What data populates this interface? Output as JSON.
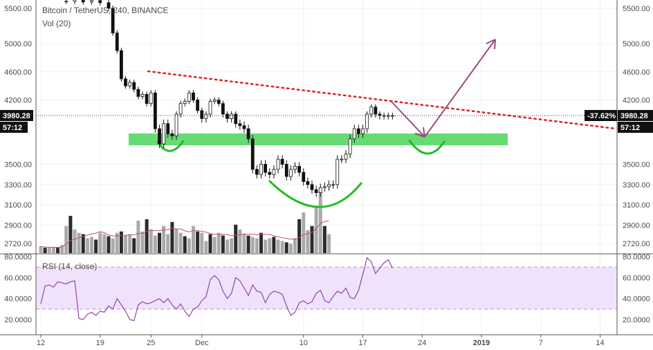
{
  "header": {
    "symbol_line": "Bitcoin / TetherUS, 240, BINANCE",
    "volume_label": "Vol (20)",
    "rsi_label": "RSI (14, close)"
  },
  "price_scale": {
    "ticks": [
      "5500.00",
      "5000.00",
      "4600.00",
      "4200.00",
      "3500.00",
      "3300.00",
      "3100.00",
      "2900.00",
      "2720.00"
    ],
    "tick_values": [
      5500,
      5000,
      4600,
      4200,
      3500,
      3300,
      3100,
      2900,
      2720
    ],
    "current_price": "3980.28",
    "countdown": "57:12",
    "percent_change": "-37.62%",
    "partial_label": "3"
  },
  "rsi_scale": {
    "ticks": [
      "80.0000",
      "60.0000",
      "40.0000",
      "20.0000"
    ],
    "tick_values": [
      80,
      60,
      40,
      20
    ],
    "upper_band": 70,
    "lower_band": 30
  },
  "time_axis": {
    "labels": [
      "12",
      "19",
      "25",
      "Dec",
      "10",
      "17",
      "24",
      "2019",
      "7",
      "14"
    ],
    "label_x_days": [
      0,
      7,
      13,
      19,
      31,
      38,
      45,
      52,
      59,
      66
    ],
    "year_label": "2019"
  },
  "chart_data": [
    {
      "type": "line",
      "name": "price",
      "title": "Bitcoin / TetherUS, 240, BINANCE",
      "x_unit": "days from Nov 12",
      "x": [
        3,
        4,
        5,
        6,
        7,
        8,
        8.5,
        9,
        9.5,
        10,
        10.5,
        11,
        11.5,
        12,
        12.5,
        13,
        13.5,
        14,
        14.5,
        15,
        15.5,
        16,
        16.5,
        17,
        17.5,
        18,
        18.5,
        19,
        19.5,
        20,
        20.5,
        21,
        21.5,
        22,
        22.5,
        23,
        23.5,
        24,
        24.5,
        25,
        25.5,
        26,
        26.5,
        27,
        27.5,
        28,
        28.5,
        29,
        29.5,
        30,
        30.5,
        31,
        31.5,
        32,
        32.5,
        33,
        33.5,
        34,
        34.5,
        35,
        35.5,
        36,
        36.5,
        37,
        37.5,
        38,
        38.5,
        39,
        39.5,
        40,
        40.5,
        41,
        41.5
      ],
      "values": [
        5600,
        5620,
        5590,
        5610,
        5580,
        5500,
        5150,
        4900,
        4500,
        4400,
        4450,
        4350,
        4250,
        4280,
        4150,
        4300,
        3850,
        3700,
        3900,
        3800,
        3780,
        4000,
        4150,
        4180,
        4300,
        4200,
        4050,
        3950,
        4000,
        4180,
        4200,
        4150,
        4000,
        3950,
        4000,
        3900,
        3880,
        3850,
        3750,
        3450,
        3400,
        3500,
        3420,
        3400,
        3450,
        3550,
        3500,
        3380,
        3450,
        3480,
        3420,
        3330,
        3300,
        3250,
        3220,
        3270,
        3280,
        3300,
        3300,
        3550,
        3550,
        3600,
        3750,
        3850,
        3800,
        3850,
        4000,
        4100,
        4000,
        3980,
        3980,
        3980,
        3980
      ],
      "ylim": [
        2650,
        5700
      ]
    },
    {
      "type": "bar",
      "name": "volume",
      "x_unit": "days from Nov 12",
      "x_start": 0,
      "x_step": 0.5,
      "values": [
        10,
        8,
        8,
        9,
        8,
        12,
        40,
        55,
        35,
        30,
        28,
        22,
        24,
        20,
        30,
        28,
        25,
        22,
        30,
        32,
        26,
        28,
        22,
        48,
        32,
        50,
        35,
        26,
        30,
        40,
        28,
        46,
        36,
        30,
        25,
        22,
        40,
        32,
        30,
        18,
        28,
        24,
        30,
        26,
        20,
        22,
        42,
        35,
        28,
        26,
        24,
        22,
        30,
        20,
        22,
        24,
        20,
        18,
        16,
        14,
        22,
        50,
        60,
        34,
        40,
        70,
        90,
        40,
        28
      ],
      "ylim": [
        0,
        100
      ]
    },
    {
      "type": "line",
      "name": "rsi",
      "x_unit": "days from Nov 12",
      "x": [
        0,
        0.5,
        1,
        1.5,
        2,
        2.5,
        3,
        3.5,
        4,
        4.5,
        5,
        5.5,
        6,
        6.5,
        7,
        7.5,
        8,
        8.5,
        9,
        9.5,
        10,
        10.5,
        11,
        11.5,
        12,
        12.5,
        13,
        13.5,
        14,
        14.5,
        15,
        15.5,
        16,
        16.5,
        17,
        17.5,
        18,
        18.5,
        19,
        19.5,
        20,
        20.5,
        21,
        21.5,
        22,
        22.5,
        23,
        23.5,
        24,
        24.5,
        25,
        25.5,
        26,
        26.5,
        27,
        27.5,
        28,
        28.5,
        29,
        29.5,
        30,
        30.5,
        31,
        31.5,
        32,
        32.5,
        33,
        33.5,
        34,
        34.5,
        35,
        35.5,
        36,
        36.5,
        37,
        37.5,
        38,
        38.5,
        39,
        39.5,
        40,
        40.5,
        41,
        41.5
      ],
      "values": [
        35,
        52,
        53,
        51,
        56,
        55,
        54,
        56,
        57,
        21,
        20,
        25,
        27,
        24,
        28,
        27,
        33,
        30,
        40,
        34,
        28,
        20,
        19,
        34,
        37,
        35,
        36,
        38,
        40,
        36,
        40,
        34,
        30,
        35,
        28,
        23,
        30,
        32,
        38,
        42,
        58,
        62,
        58,
        47,
        40,
        45,
        60,
        57,
        50,
        43,
        53,
        47,
        46,
        36,
        44,
        47,
        46,
        44,
        33,
        24,
        27,
        36,
        38,
        35,
        37,
        45,
        48,
        38,
        36,
        42,
        47,
        45,
        50,
        41,
        40,
        48,
        63,
        79,
        75,
        64,
        69,
        74,
        77,
        69
      ],
      "ylim": [
        10,
        80
      ]
    }
  ],
  "annotations": {
    "resistance_line_color": "#e02020",
    "support_band_color": "#4ad65a",
    "arrow_color": "#9b4a7a",
    "cup_color": "#22bb22"
  }
}
